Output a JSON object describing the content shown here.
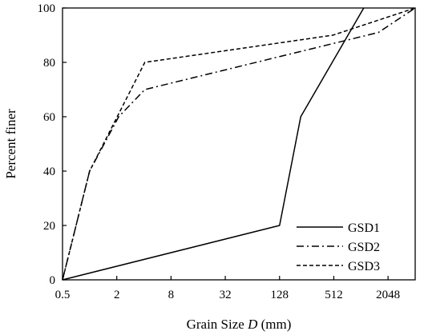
{
  "chart_data": {
    "type": "line",
    "title": "",
    "xlabel_prefix": "Grain Size ",
    "xlabel_var": "D",
    "xlabel_suffix": " (mm)",
    "ylabel": "Percent finer",
    "x_scale": "log2",
    "xlim": [
      0.5,
      4096
    ],
    "ylim": [
      0,
      100
    ],
    "x_ticks": [
      0.5,
      2,
      8,
      32,
      128,
      512,
      2048
    ],
    "x_tick_labels": [
      "0.5",
      "2",
      "8",
      "32",
      "128",
      "512",
      "2048"
    ],
    "y_ticks": [
      0,
      20,
      40,
      60,
      80,
      100
    ],
    "y_tick_labels": [
      "0",
      "20",
      "40",
      "60",
      "80",
      "100"
    ],
    "grid": false,
    "legend_position": "bottom-right",
    "series": [
      {
        "name": "GSD1",
        "dash": "solid",
        "points": [
          [
            0.5,
            0
          ],
          [
            128,
            20
          ],
          [
            220,
            60
          ],
          [
            1100,
            100
          ]
        ]
      },
      {
        "name": "GSD2",
        "dash": "dashdot",
        "points": [
          [
            0.5,
            0
          ],
          [
            1,
            40
          ],
          [
            2.1,
            60
          ],
          [
            4.1,
            70
          ],
          [
            1600,
            91
          ],
          [
            4096,
            100
          ]
        ]
      },
      {
        "name": "GSD3",
        "dash": "dashed",
        "points": [
          [
            0.5,
            0
          ],
          [
            1,
            40
          ],
          [
            4.1,
            80
          ],
          [
            500,
            90
          ],
          [
            4096,
            100
          ]
        ]
      }
    ]
  }
}
